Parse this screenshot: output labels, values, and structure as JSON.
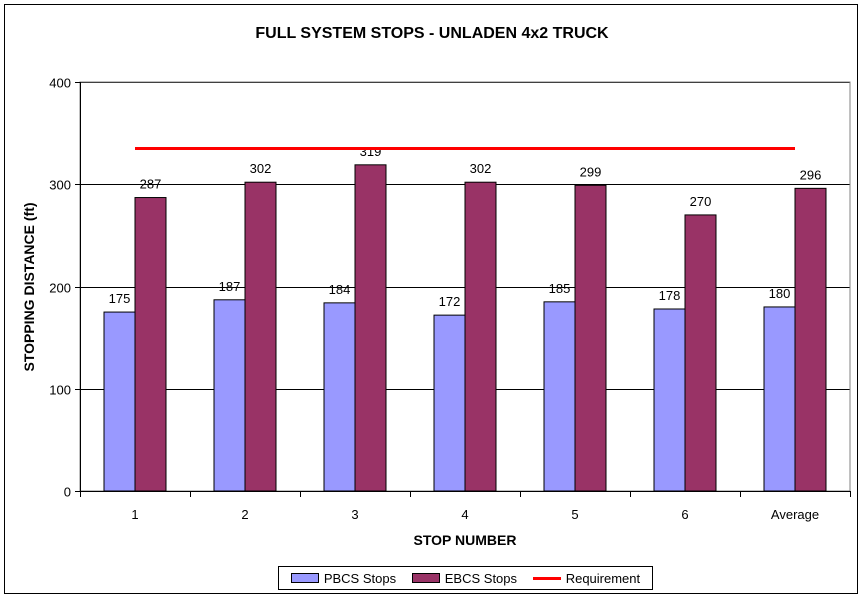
{
  "chart_data": {
    "type": "bar",
    "title": "FULL SYSTEM STOPS - UNLADEN 4x2 TRUCK",
    "xlabel": "STOP NUMBER",
    "ylabel": "STOPPING DISTANCE (ft)",
    "ylim": [
      0,
      400
    ],
    "yticks": [
      "0",
      "100",
      "200",
      "300",
      "400"
    ],
    "categories": [
      "1",
      "2",
      "3",
      "4",
      "5",
      "6",
      "Average"
    ],
    "series": [
      {
        "name": "PBCS Stops",
        "color": "#9999ff",
        "values": [
          175,
          187,
          184,
          172,
          185,
          178,
          180
        ]
      },
      {
        "name": "EBCS Stops",
        "color": "#993366",
        "values": [
          287,
          302,
          319,
          302,
          299,
          270,
          296
        ]
      }
    ],
    "reference_line": {
      "name": "Requirement",
      "value": 335,
      "color": "#ff0000"
    },
    "grid": true,
    "legend_position": "bottom"
  }
}
